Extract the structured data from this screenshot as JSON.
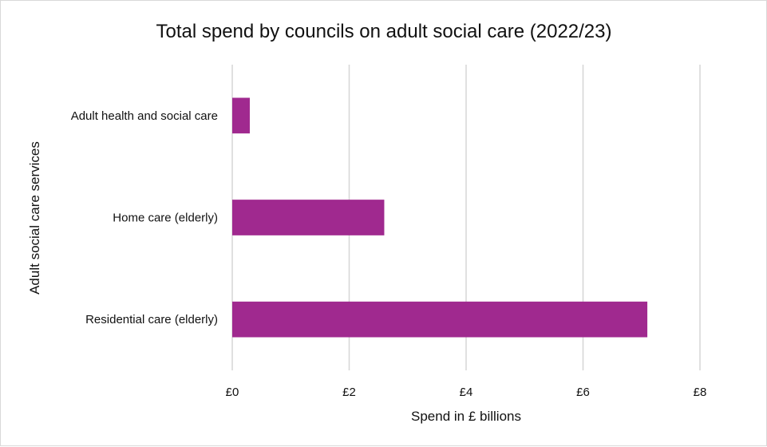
{
  "chart_data": {
    "type": "bar",
    "orientation": "horizontal",
    "title": "Total spend by councils on adult social care (2022/23)",
    "xlabel": "Spend in £ billions",
    "ylabel": "Adult social care services",
    "categories": [
      "Adult health and social care",
      "Home care (elderly)",
      "Residential care (elderly)"
    ],
    "values": [
      0.3,
      2.6,
      7.1
    ],
    "xlim": [
      0,
      8
    ],
    "xticks": [
      0,
      2,
      4,
      6,
      8
    ],
    "xtick_labels": [
      "£0",
      "£2",
      "£4",
      "£6",
      "£8"
    ],
    "grid": true,
    "legend": "none",
    "bar_color": "#a0298f"
  }
}
